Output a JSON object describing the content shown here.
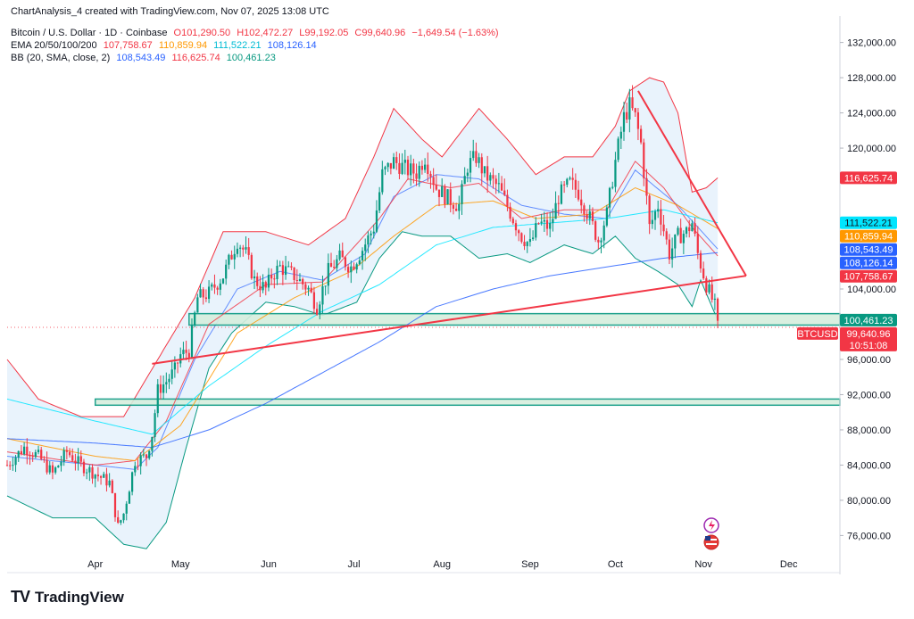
{
  "header": {
    "attribution": "ChartAnalysis_4 created with TradingView.com, Nov 07, 2025 13:08 UTC",
    "symbol": "Bitcoin / U.S. Dollar · 1D · Coinbase",
    "o": "O101,290.50",
    "h": "H102,472.27",
    "l": "L99,192.05",
    "c": "C99,640.96",
    "change": "−1,649.54 (−1.63%)",
    "ema_label": "EMA 20/50/100/200",
    "ema_values": [
      "107,758.67",
      "110,859.94",
      "111,522.21",
      "108,126.14"
    ],
    "bb_label": "BB (20, SMA, close, 2)",
    "bb_values": [
      "108,543.49",
      "116,625.74",
      "100,461.23"
    ]
  },
  "colors": {
    "up": "#089981",
    "down": "#f23645",
    "ema20": "#f23645",
    "ema50": "#ff9800",
    "ema100": "#00e5ff",
    "ema200": "#2962ff",
    "bb_basis": "#2962ff",
    "bb_upper": "#f23645",
    "bb_lower": "#089981",
    "bb_fill": "#e3f0fb",
    "trend": "#f23645",
    "zone_fill": "#d6eedd",
    "zone_border": "#089981"
  },
  "price_badges": [
    {
      "label": "116,625.74",
      "value": 116625.74,
      "bg": "#f23645",
      "fg": "#ffffff"
    },
    {
      "label": "111,522.21",
      "value": 111522.21,
      "bg": "#00e5ff",
      "fg": "#131722"
    },
    {
      "label": "110,859.94",
      "value": 110859.94,
      "bg": "#ff9800",
      "fg": "#ffffff"
    },
    {
      "label": "108,543.49",
      "value": 108543.49,
      "bg": "#2962ff",
      "fg": "#ffffff"
    },
    {
      "label": "108,126.14",
      "value": 108126.14,
      "bg": "#2962ff",
      "fg": "#ffffff"
    },
    {
      "label": "107,758.67",
      "value": 107758.67,
      "bg": "#f23645",
      "fg": "#ffffff"
    },
    {
      "label": "100,461.23",
      "value": 100461.23,
      "bg": "#089981",
      "fg": "#ffffff"
    }
  ],
  "last_price": {
    "symbol": "BTCUSD",
    "price": "99,640.96",
    "countdown": "10:51:08",
    "value": 99640.96
  },
  "brand": {
    "name": "TradingView",
    "logo": "TV"
  },
  "chart_data": {
    "type": "candlestick",
    "ylim": [
      73000,
      135000
    ],
    "y_ticks": [
      "76,000.00",
      "80,000.00",
      "84,000.00",
      "88,000.00",
      "92,000.00",
      "96,000.00",
      "104,000.00",
      "120,000.00",
      "124,000.00",
      "128,000.00",
      "132,000.00"
    ],
    "y_tick_values": [
      76000,
      80000,
      84000,
      88000,
      92000,
      96000,
      104000,
      120000,
      124000,
      128000,
      132000
    ],
    "x_labels": [
      "Apr",
      "May",
      "Jun",
      "Jul",
      "Aug",
      "Sep",
      "Oct",
      "Nov",
      "Dec"
    ],
    "x_label_days": [
      0,
      30,
      61,
      91,
      122,
      153,
      183,
      214,
      244
    ],
    "x_range_days": [
      -31,
      262
    ],
    "anchors": [
      [
        -31,
        84000
      ],
      [
        -25,
        86000
      ],
      [
        -20,
        85000
      ],
      [
        -15,
        83000
      ],
      [
        -10,
        85500
      ],
      [
        -5,
        84000
      ],
      [
        0,
        83000
      ],
      [
        5,
        82000
      ],
      [
        8,
        77000
      ],
      [
        10,
        78500
      ],
      [
        14,
        84500
      ],
      [
        18,
        85000
      ],
      [
        20,
        87500
      ],
      [
        22,
        92500
      ],
      [
        25,
        93500
      ],
      [
        28,
        94800
      ],
      [
        30,
        96500
      ],
      [
        33,
        97000
      ],
      [
        36,
        103000
      ],
      [
        40,
        103500
      ],
      [
        45,
        105500
      ],
      [
        50,
        109500
      ],
      [
        53,
        108000
      ],
      [
        56,
        105000
      ],
      [
        60,
        104000
      ],
      [
        62,
        105500
      ],
      [
        65,
        106500
      ],
      [
        70,
        105500
      ],
      [
        75,
        104000
      ],
      [
        78,
        102000
      ],
      [
        82,
        106000
      ],
      [
        86,
        107500
      ],
      [
        90,
        106500
      ],
      [
        94,
        108500
      ],
      [
        98,
        111000
      ],
      [
        101,
        117000
      ],
      [
        105,
        118500
      ],
      [
        110,
        117500
      ],
      [
        113,
        117200
      ],
      [
        116,
        119000
      ],
      [
        120,
        115500
      ],
      [
        124,
        114300
      ],
      [
        128,
        113500
      ],
      [
        131,
        118000
      ],
      [
        134,
        119000
      ],
      [
        137,
        117000
      ],
      [
        142,
        115500
      ],
      [
        147,
        112000
      ],
      [
        150,
        110000
      ],
      [
        153,
        109000
      ],
      [
        156,
        111500
      ],
      [
        160,
        111000
      ],
      [
        163,
        114500
      ],
      [
        167,
        116000
      ],
      [
        170,
        115000
      ],
      [
        174,
        112000
      ],
      [
        177,
        109500
      ],
      [
        180,
        112500
      ],
      [
        183,
        118500
      ],
      [
        186,
        123500
      ],
      [
        188,
        124800
      ],
      [
        190,
        123500
      ],
      [
        192,
        120500
      ],
      [
        195,
        111000
      ],
      [
        198,
        113500
      ],
      [
        202,
        108000
      ],
      [
        205,
        110000
      ],
      [
        208,
        110500
      ],
      [
        210,
        111500
      ],
      [
        212,
        108000
      ],
      [
        215,
        104500
      ],
      [
        218,
        102000
      ],
      [
        219,
        99640.96
      ]
    ],
    "ema20_anchors": [
      [
        -31,
        85500
      ],
      [
        0,
        84000
      ],
      [
        14,
        84500
      ],
      [
        25,
        89000
      ],
      [
        40,
        100000
      ],
      [
        60,
        104500
      ],
      [
        80,
        104800
      ],
      [
        100,
        112000
      ],
      [
        110,
        116500
      ],
      [
        125,
        115500
      ],
      [
        135,
        116000
      ],
      [
        150,
        112000
      ],
      [
        165,
        113000
      ],
      [
        180,
        113000
      ],
      [
        190,
        118500
      ],
      [
        200,
        115500
      ],
      [
        210,
        111000
      ],
      [
        219,
        107758.67
      ]
    ],
    "ema50_anchors": [
      [
        -31,
        87000
      ],
      [
        0,
        85000
      ],
      [
        14,
        84500
      ],
      [
        30,
        88500
      ],
      [
        50,
        99000
      ],
      [
        70,
        103000
      ],
      [
        90,
        106000
      ],
      [
        105,
        110000
      ],
      [
        120,
        113500
      ],
      [
        140,
        114000
      ],
      [
        155,
        112000
      ],
      [
        175,
        112500
      ],
      [
        190,
        115500
      ],
      [
        205,
        113500
      ],
      [
        219,
        110859.94
      ]
    ],
    "ema100_anchors": [
      [
        -31,
        91500
      ],
      [
        0,
        89000
      ],
      [
        20,
        87500
      ],
      [
        40,
        93000
      ],
      [
        60,
        97500
      ],
      [
        80,
        101500
      ],
      [
        100,
        104500
      ],
      [
        120,
        109000
      ],
      [
        140,
        111000
      ],
      [
        160,
        111500
      ],
      [
        180,
        112000
      ],
      [
        200,
        113000
      ],
      [
        219,
        111522.21
      ]
    ],
    "ema200_anchors": [
      [
        -31,
        87000
      ],
      [
        0,
        86500
      ],
      [
        20,
        86000
      ],
      [
        40,
        88000
      ],
      [
        60,
        91000
      ],
      [
        80,
        94500
      ],
      [
        100,
        98000
      ],
      [
        120,
        102000
      ],
      [
        140,
        104000
      ],
      [
        160,
        105500
      ],
      [
        180,
        106500
      ],
      [
        200,
        107500
      ],
      [
        219,
        108126.14
      ]
    ],
    "bb_basis_anchors": [
      [
        -31,
        85000
      ],
      [
        0,
        84000
      ],
      [
        14,
        83500
      ],
      [
        22,
        86000
      ],
      [
        35,
        96000
      ],
      [
        50,
        104000
      ],
      [
        65,
        106000
      ],
      [
        80,
        105000
      ],
      [
        95,
        108000
      ],
      [
        105,
        114500
      ],
      [
        120,
        117000
      ],
      [
        135,
        116500
      ],
      [
        150,
        113500
      ],
      [
        165,
        112500
      ],
      [
        180,
        112000
      ],
      [
        190,
        117500
      ],
      [
        205,
        113500
      ],
      [
        219,
        108543.49
      ]
    ],
    "bb_upper_anchors": [
      [
        -31,
        96000
      ],
      [
        -20,
        91500
      ],
      [
        -5,
        89500
      ],
      [
        10,
        89500
      ],
      [
        22,
        96000
      ],
      [
        35,
        103000
      ],
      [
        45,
        110500
      ],
      [
        60,
        110500
      ],
      [
        75,
        109000
      ],
      [
        88,
        112000
      ],
      [
        98,
        119000
      ],
      [
        105,
        124500
      ],
      [
        115,
        121000
      ],
      [
        122,
        119000
      ],
      [
        135,
        124500
      ],
      [
        145,
        121000
      ],
      [
        155,
        117000
      ],
      [
        165,
        119000
      ],
      [
        175,
        119000
      ],
      [
        183,
        122500
      ],
      [
        188,
        126500
      ],
      [
        195,
        128000
      ],
      [
        200,
        127500
      ],
      [
        205,
        124000
      ],
      [
        210,
        115000
      ],
      [
        215,
        115500
      ],
      [
        219,
        116625.74
      ]
    ],
    "bb_lower_anchors": [
      [
        -31,
        80500
      ],
      [
        -15,
        78000
      ],
      [
        0,
        78000
      ],
      [
        10,
        75000
      ],
      [
        18,
        74500
      ],
      [
        25,
        77500
      ],
      [
        32,
        86000
      ],
      [
        40,
        95000
      ],
      [
        48,
        99000
      ],
      [
        60,
        102500
      ],
      [
        70,
        102000
      ],
      [
        80,
        101000
      ],
      [
        92,
        102500
      ],
      [
        100,
        107500
      ],
      [
        108,
        110500
      ],
      [
        115,
        110000
      ],
      [
        125,
        110000
      ],
      [
        135,
        107500
      ],
      [
        145,
        108000
      ],
      [
        153,
        107000
      ],
      [
        165,
        109000
      ],
      [
        175,
        108000
      ],
      [
        183,
        110000
      ],
      [
        190,
        107500
      ],
      [
        198,
        106000
      ],
      [
        205,
        104500
      ],
      [
        210,
        102000
      ],
      [
        213,
        105000
      ],
      [
        219,
        100461.23
      ]
    ],
    "trend_lower": [
      [
        20,
        95500
      ],
      [
        229,
        105500
      ]
    ],
    "trend_upper": [
      [
        191,
        126500
      ],
      [
        229,
        105500
      ]
    ],
    "zones": [
      {
        "top": 101200,
        "bottom": 99900,
        "from_day": 33
      },
      {
        "top": 91500,
        "bottom": 90800,
        "from_day": 0
      }
    ]
  }
}
